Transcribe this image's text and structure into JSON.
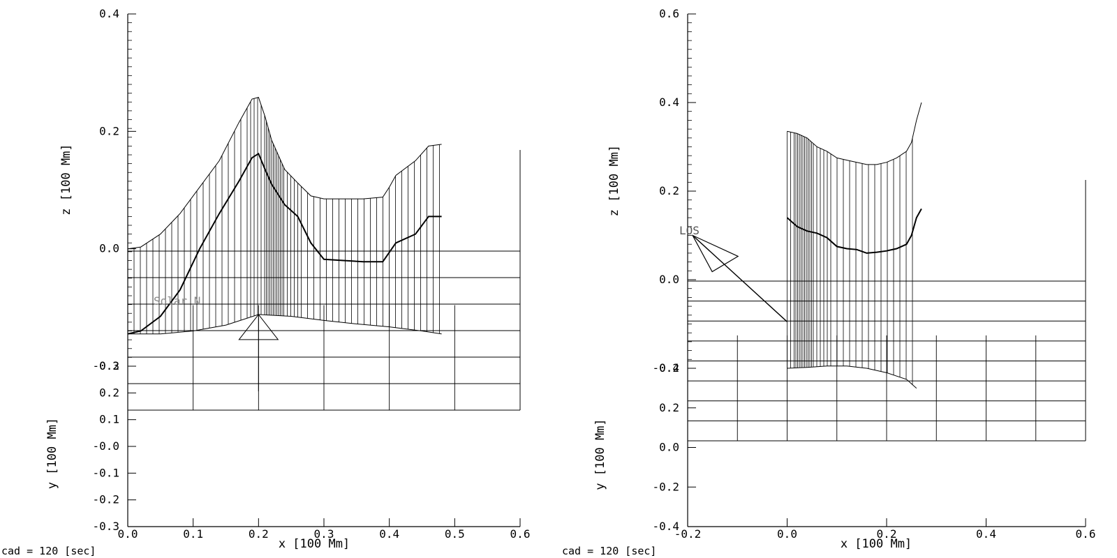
{
  "chart_data": [
    {
      "type": "line",
      "view": "z (side view) with y panel below, x axis shared",
      "xlabel": "x [100 Mm]",
      "zlabel": "z [100 Mm]",
      "ylabel": "y [100 Mm]",
      "xlim": [
        0.0,
        0.6
      ],
      "zlim": [
        -0.2,
        0.4
      ],
      "ylim": [
        -0.3,
        0.3
      ],
      "x_ticks": [
        "0.0",
        "0.1",
        "0.2",
        "0.3",
        "0.4",
        "0.5",
        "0.6"
      ],
      "z_ticks": [
        "-0.2",
        "0.0",
        "0.2",
        "0.4"
      ],
      "y_ticks": [
        "-0.3",
        "-0.2",
        "-0.1",
        "-0.0",
        "0.1",
        "0.2",
        "0.3"
      ],
      "footer": "cad =  120 [sec]",
      "annotation": "Solar N",
      "series": [
        {
          "role": "upper boundary",
          "x": [
            0.0,
            0.02,
            0.05,
            0.08,
            0.11,
            0.14,
            0.17,
            0.19,
            0.2,
            0.21,
            0.22,
            0.24,
            0.26,
            0.28,
            0.3,
            0.33,
            0.36,
            0.39,
            0.4,
            0.41,
            0.44,
            0.46,
            0.48
          ],
          "z": [
            0.0,
            0.003,
            0.025,
            0.06,
            0.105,
            0.15,
            0.215,
            0.255,
            0.258,
            0.225,
            0.185,
            0.135,
            0.112,
            0.09,
            0.085,
            0.085,
            0.085,
            0.088,
            0.105,
            0.125,
            0.15,
            0.175,
            0.178
          ]
        },
        {
          "role": "field line",
          "x": [
            0.0,
            0.02,
            0.05,
            0.08,
            0.11,
            0.14,
            0.17,
            0.19,
            0.2,
            0.21,
            0.22,
            0.24,
            0.26,
            0.28,
            0.3,
            0.33,
            0.36,
            0.39,
            0.41,
            0.44,
            0.46,
            0.48
          ],
          "z": [
            -0.145,
            -0.14,
            -0.115,
            -0.07,
            0.0,
            0.06,
            0.115,
            0.155,
            0.162,
            0.135,
            0.11,
            0.075,
            0.055,
            0.01,
            -0.018,
            -0.02,
            -0.022,
            -0.022,
            0.01,
            0.025,
            0.055,
            0.055
          ]
        },
        {
          "role": "footpoint baseline",
          "x": [
            0.0,
            0.05,
            0.1,
            0.15,
            0.2,
            0.25,
            0.3,
            0.35,
            0.4,
            0.45,
            0.48
          ],
          "z": [
            -0.145,
            -0.145,
            -0.14,
            -0.13,
            -0.112,
            -0.115,
            -0.122,
            -0.128,
            -0.133,
            -0.14,
            -0.145
          ]
        }
      ],
      "vertical_hatch": {
        "x_range": [
          0.0,
          0.48
        ],
        "dense_near_x": 0.22
      },
      "ground_grid": {
        "x": [
          0.0,
          0.1,
          0.2,
          0.3,
          0.4,
          0.5,
          0.6
        ],
        "rows": 6
      },
      "observer_marker": {
        "x": 0.2,
        "label": ""
      }
    },
    {
      "type": "line",
      "view": "z (side view) with y panel below, x axis shared",
      "xlabel": "x [100 Mm]",
      "zlabel": "z [100 Mm]",
      "ylabel": "y [100 Mm]",
      "xlim": [
        -0.2,
        0.6
      ],
      "zlim": [
        -0.2,
        0.6
      ],
      "ylim": [
        -0.4,
        0.4
      ],
      "x_ticks": [
        "-0.2",
        "0.0",
        "0.2",
        "0.4",
        "0.6"
      ],
      "z_ticks": [
        "-0.2",
        "0.0",
        "0.2",
        "0.4",
        "0.6"
      ],
      "y_ticks": [
        "-0.4",
        "-0.2",
        "0.0",
        "0.2",
        "0.4"
      ],
      "footer": "cad =  120 [sec]",
      "annotation": "LOS",
      "series": [
        {
          "role": "upper boundary",
          "x": [
            0.0,
            0.02,
            0.04,
            0.06,
            0.08,
            0.1,
            0.12,
            0.14,
            0.16,
            0.18,
            0.2,
            0.22,
            0.24,
            0.25,
            0.26,
            0.27
          ],
          "z": [
            0.335,
            0.33,
            0.32,
            0.3,
            0.29,
            0.275,
            0.27,
            0.265,
            0.26,
            0.26,
            0.265,
            0.275,
            0.29,
            0.31,
            0.36,
            0.4
          ]
        },
        {
          "role": "field line",
          "x": [
            0.0,
            0.02,
            0.04,
            0.06,
            0.08,
            0.1,
            0.12,
            0.14,
            0.16,
            0.18,
            0.2,
            0.22,
            0.24,
            0.25,
            0.26,
            0.27
          ],
          "z": [
            0.14,
            0.12,
            0.11,
            0.105,
            0.095,
            0.075,
            0.07,
            0.068,
            0.06,
            0.062,
            0.065,
            0.07,
            0.08,
            0.1,
            0.14,
            0.16
          ]
        },
        {
          "role": "footpoint baseline",
          "x": [
            0.0,
            0.04,
            0.08,
            0.12,
            0.16,
            0.2,
            0.24,
            0.26
          ],
          "z": [
            -0.2,
            -0.198,
            -0.195,
            -0.195,
            -0.2,
            -0.21,
            -0.225,
            -0.245
          ]
        }
      ],
      "vertical_hatch": {
        "x_range": [
          0.0,
          0.26
        ],
        "dense_near_x": 0.03
      },
      "ground_grid": {
        "x": [
          -0.2,
          -0.1,
          0.0,
          0.1,
          0.2,
          0.3,
          0.4,
          0.5,
          0.6
        ],
        "rows": 8
      },
      "observer_marker": {
        "x": -0.19,
        "label": "LOS"
      }
    }
  ]
}
